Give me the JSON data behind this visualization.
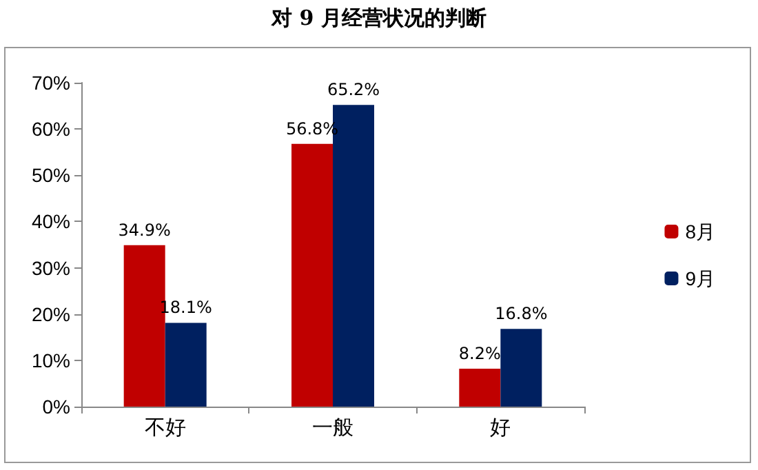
{
  "chart_data": {
    "type": "bar",
    "title": "对 9 月经营状况的判断",
    "categories": [
      "不好",
      "一般",
      "好"
    ],
    "series": [
      {
        "name": "8月",
        "color": "#c00000",
        "values": [
          34.9,
          56.8,
          8.2
        ],
        "value_labels": [
          "34.9%",
          "56.8%",
          "8.2%"
        ]
      },
      {
        "name": "9月",
        "color": "#002060",
        "values": [
          18.1,
          65.2,
          16.8
        ],
        "value_labels": [
          "18.1%",
          "65.2%",
          "16.8%"
        ]
      }
    ],
    "ylim": [
      0,
      70
    ],
    "yticks": [
      {
        "value": 0,
        "label": "0%"
      },
      {
        "value": 10,
        "label": "10%"
      },
      {
        "value": 20,
        "label": "20%"
      },
      {
        "value": 30,
        "label": "30%"
      },
      {
        "value": 40,
        "label": "40%"
      },
      {
        "value": 50,
        "label": "50%"
      },
      {
        "value": 60,
        "label": "60%"
      },
      {
        "value": 70,
        "label": "70%"
      }
    ],
    "grid": false,
    "legend": "right"
  }
}
